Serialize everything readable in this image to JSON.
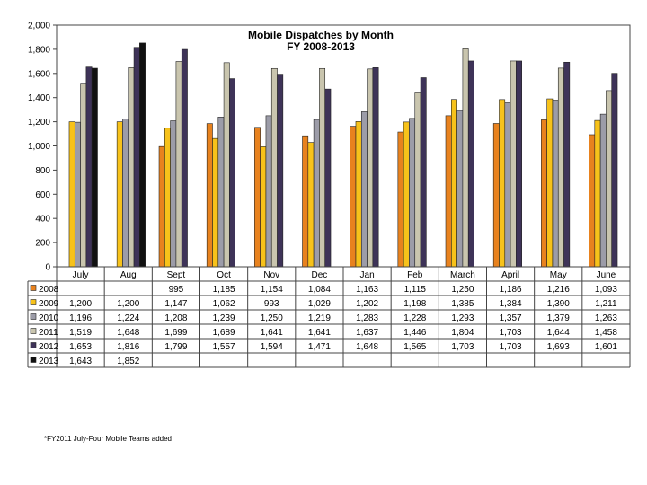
{
  "chart_data": {
    "type": "bar",
    "title": "Mobile Dispatches by Month",
    "subtitle": "FY 2008-2013",
    "categories": [
      "July",
      "Aug",
      "Sept",
      "Oct",
      "Nov",
      "Dec",
      "Jan",
      "Feb",
      "March",
      "April",
      "May",
      "June"
    ],
    "ylim": [
      0,
      2000
    ],
    "yticks": [
      0,
      200,
      400,
      600,
      800,
      1000,
      1200,
      1400,
      1600,
      1800,
      2000
    ],
    "ytick_labels": [
      "0",
      "200",
      "400",
      "600",
      "800",
      "1,000",
      "1,200",
      "1,400",
      "1,600",
      "1,800",
      "2,000"
    ],
    "grid": false,
    "legend_placement": "data-table",
    "series": [
      {
        "name": "2008",
        "color": "#E8821E",
        "values": [
          null,
          null,
          995,
          1185,
          1154,
          1084,
          1163,
          1115,
          1250,
          1186,
          1216,
          1093
        ],
        "labels": [
          "",
          "",
          "995",
          "1,185",
          "1,154",
          "1,084",
          "1,163",
          "1,115",
          "1,250",
          "1,186",
          "1,216",
          "1,093"
        ]
      },
      {
        "name": "2009",
        "color": "#F7C21A",
        "values": [
          1200,
          1200,
          1147,
          1062,
          993,
          1029,
          1202,
          1198,
          1385,
          1384,
          1390,
          1211
        ],
        "labels": [
          "1,200",
          "1,200",
          "1,147",
          "1,062",
          "993",
          "1,029",
          "1,202",
          "1,198",
          "1,385",
          "1,384",
          "1,390",
          "1,211"
        ]
      },
      {
        "name": "2010",
        "color": "#9C9CA8",
        "values": [
          1196,
          1224,
          1208,
          1239,
          1250,
          1219,
          1283,
          1228,
          1293,
          1357,
          1379,
          1263
        ],
        "labels": [
          "1,196",
          "1,224",
          "1,208",
          "1,239",
          "1,250",
          "1,219",
          "1,283",
          "1,228",
          "1,293",
          "1,357",
          "1,379",
          "1,263"
        ]
      },
      {
        "name": "2011",
        "color": "#C9C5AE",
        "values": [
          1519,
          1648,
          1699,
          1689,
          1641,
          1641,
          1637,
          1446,
          1804,
          1703,
          1644,
          1458
        ],
        "labels": [
          "1,519",
          "1,648",
          "1,699",
          "1,689",
          "1,641",
          "1,641",
          "1,637",
          "1,446",
          "1,804",
          "1,703",
          "1,644",
          "1,458"
        ]
      },
      {
        "name": "2012",
        "color": "#3E3358",
        "values": [
          1653,
          1816,
          1799,
          1557,
          1594,
          1471,
          1648,
          1565,
          1703,
          1703,
          1693,
          1601
        ],
        "labels": [
          "1,653",
          "1,816",
          "1,799",
          "1,557",
          "1,594",
          "1,471",
          "1,648",
          "1,565",
          "1,703",
          "1,703",
          "1,693",
          "1,601"
        ]
      },
      {
        "name": "2013",
        "color": "#111111",
        "values": [
          1643,
          1852,
          null,
          null,
          null,
          null,
          null,
          null,
          null,
          null,
          null,
          null
        ],
        "labels": [
          "1,643",
          "1,852",
          "",
          "",
          "",
          "",
          "",
          "",
          "",
          "",
          "",
          ""
        ]
      }
    ]
  },
  "footnote": "*FY2011 July-Four Mobile Teams added"
}
